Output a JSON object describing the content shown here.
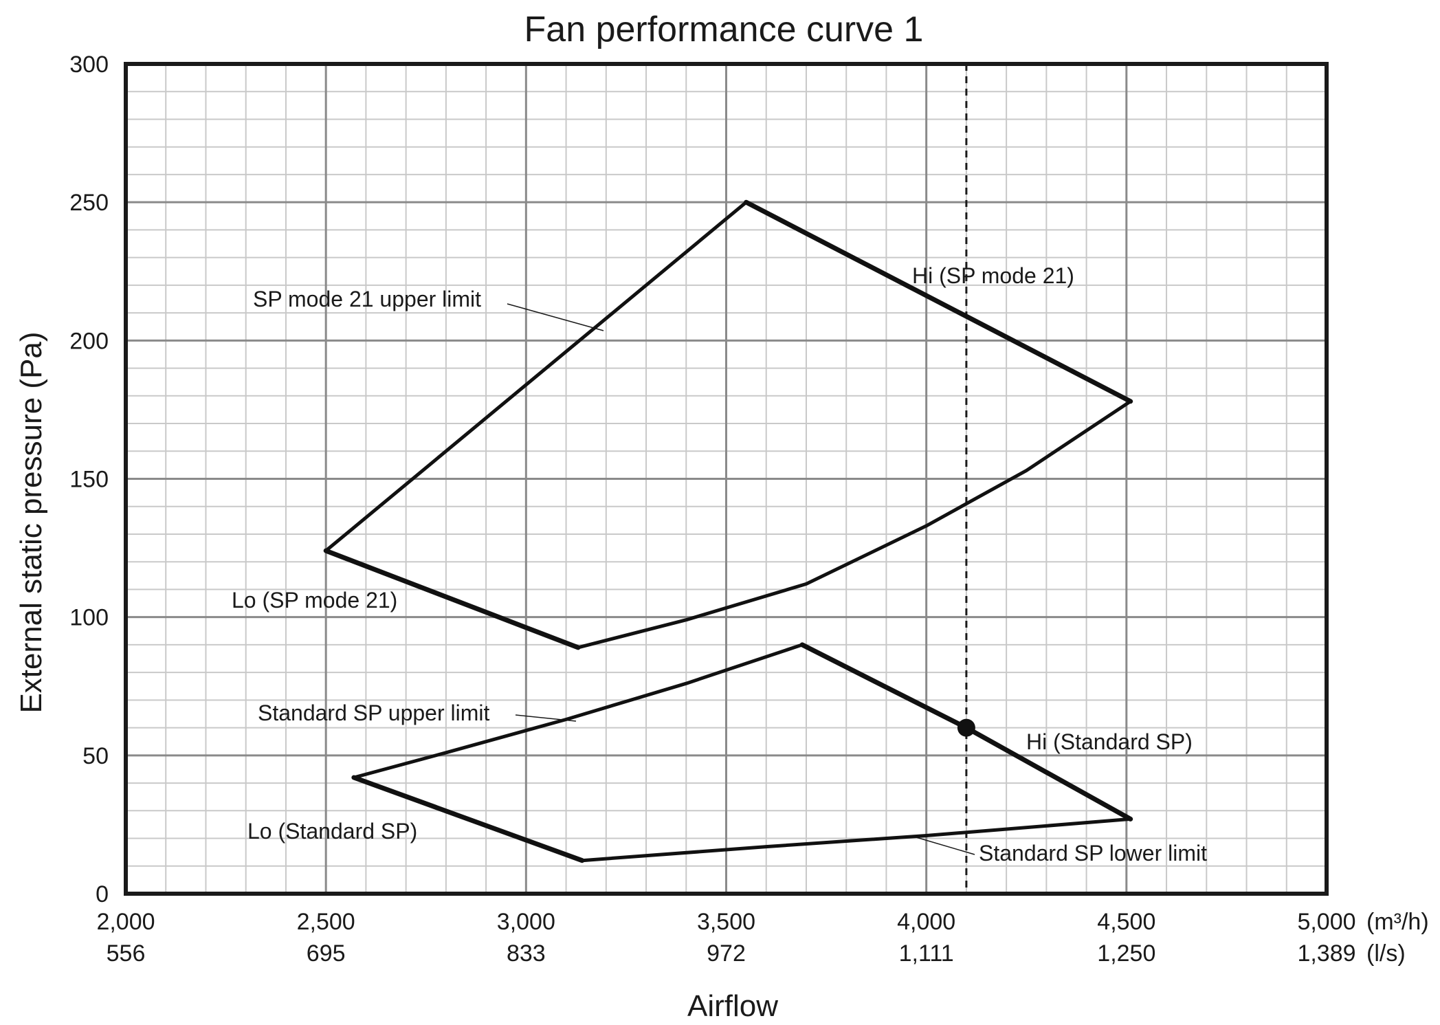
{
  "chart_data": {
    "type": "line",
    "title": "Fan performance curve 1",
    "xlabel": "Airflow",
    "ylabel": "External static pressure (Pa)",
    "xlim": [
      2000,
      5000
    ],
    "ylim": [
      0,
      300
    ],
    "grid": true,
    "x_ticks_primary": [
      {
        "value": 2000,
        "label": "2,000"
      },
      {
        "value": 2500,
        "label": "2,500"
      },
      {
        "value": 3000,
        "label": "3,000"
      },
      {
        "value": 3500,
        "label": "3,500"
      },
      {
        "value": 4000,
        "label": "4,000"
      },
      {
        "value": 4500,
        "label": "4,500"
      },
      {
        "value": 5000,
        "label": "5,000"
      }
    ],
    "x_unit_primary": "(m³/h)",
    "x_ticks_secondary": [
      "556",
      "695",
      "833",
      "972",
      "1,111",
      "1,250",
      "1,389"
    ],
    "x_unit_secondary": "(l/s)",
    "y_ticks": [
      {
        "value": 0,
        "label": "0"
      },
      {
        "value": 50,
        "label": "50"
      },
      {
        "value": 100,
        "label": "100"
      },
      {
        "value": 150,
        "label": "150"
      },
      {
        "value": 200,
        "label": "200"
      },
      {
        "value": 250,
        "label": "250"
      },
      {
        "value": 300,
        "label": "300"
      }
    ],
    "series": [
      {
        "key": "sp21_upper",
        "points": [
          [
            2500,
            124
          ],
          [
            3550,
            250
          ]
        ]
      },
      {
        "key": "sp21_hi",
        "points": [
          [
            3550,
            250
          ],
          [
            4510,
            178
          ]
        ]
      },
      {
        "key": "sp21_lower",
        "points": [
          [
            3130,
            89
          ],
          [
            3400,
            99
          ],
          [
            3700,
            112
          ],
          [
            4000,
            133
          ],
          [
            4250,
            153
          ],
          [
            4510,
            178
          ]
        ]
      },
      {
        "key": "sp21_lo",
        "points": [
          [
            2500,
            124
          ],
          [
            3130,
            89
          ]
        ]
      },
      {
        "key": "std_upper",
        "points": [
          [
            2570,
            42
          ],
          [
            2800,
            51
          ],
          [
            3100,
            63
          ],
          [
            3400,
            76
          ],
          [
            3690,
            90
          ]
        ]
      },
      {
        "key": "std_hi",
        "points": [
          [
            3690,
            90
          ],
          [
            4100,
            60
          ],
          [
            4510,
            27
          ]
        ]
      },
      {
        "key": "std_lower",
        "points": [
          [
            3140,
            12
          ],
          [
            3600,
            17
          ],
          [
            4000,
            21
          ],
          [
            4510,
            27
          ]
        ]
      },
      {
        "key": "std_lo",
        "points": [
          [
            2570,
            42
          ],
          [
            3140,
            12
          ]
        ]
      }
    ],
    "reference_line": {
      "x": 4100,
      "style": "dashed"
    },
    "marker": {
      "x": 4100,
      "y": 60
    },
    "annotations": {
      "sp21_upper_limit": "SP mode 21 upper limit",
      "sp21_hi": "Hi (SP mode 21)",
      "sp21_lo": "Lo (SP mode 21)",
      "std_upper_limit": "Standard SP upper limit",
      "std_hi": "Hi (Standard SP)",
      "std_lo": "Lo (Standard SP)",
      "std_lower_limit": "Standard SP lower limit"
    }
  }
}
